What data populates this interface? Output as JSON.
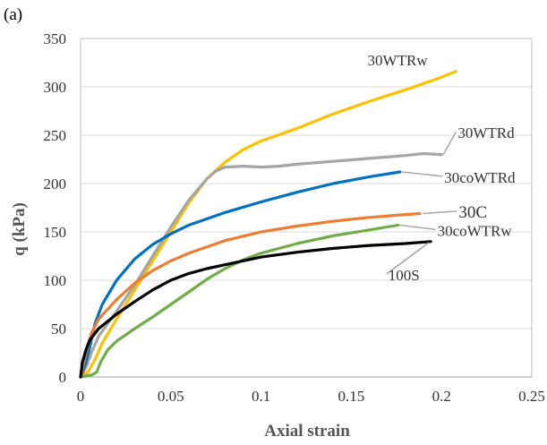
{
  "panel_label": "(a)",
  "chart_data": {
    "type": "line",
    "title": "",
    "xlabel": "Axial strain",
    "ylabel": "q (kPa)",
    "xlim": [
      0,
      0.25
    ],
    "ylim": [
      0,
      350
    ],
    "x_ticks": [
      "0",
      "0.05",
      "0.1",
      "0.15",
      "0.2",
      "0.25"
    ],
    "y_ticks": [
      "0",
      "50",
      "100",
      "150",
      "200",
      "250",
      "300",
      "350"
    ],
    "grid": "horizontal",
    "legend": "none (direct labels)",
    "series": [
      {
        "name": "30WTRw",
        "color": "#FFC000",
        "points": [
          [
            0,
            0
          ],
          [
            0.004,
            5
          ],
          [
            0.008,
            18
          ],
          [
            0.012,
            35
          ],
          [
            0.02,
            60
          ],
          [
            0.03,
            90
          ],
          [
            0.04,
            120
          ],
          [
            0.05,
            150
          ],
          [
            0.06,
            180
          ],
          [
            0.07,
            205
          ],
          [
            0.08,
            222
          ],
          [
            0.09,
            235
          ],
          [
            0.1,
            244
          ],
          [
            0.12,
            257
          ],
          [
            0.14,
            272
          ],
          [
            0.16,
            285
          ],
          [
            0.18,
            297
          ],
          [
            0.2,
            310
          ],
          [
            0.208,
            316
          ]
        ]
      },
      {
        "name": "30WTRd",
        "color": "#A5A5A5",
        "points": [
          [
            0,
            0
          ],
          [
            0.003,
            10
          ],
          [
            0.006,
            25
          ],
          [
            0.01,
            42
          ],
          [
            0.015,
            55
          ],
          [
            0.02,
            68
          ],
          [
            0.03,
            95
          ],
          [
            0.04,
            125
          ],
          [
            0.05,
            155
          ],
          [
            0.06,
            183
          ],
          [
            0.07,
            205
          ],
          [
            0.075,
            213
          ],
          [
            0.08,
            217
          ],
          [
            0.09,
            218
          ],
          [
            0.1,
            217
          ],
          [
            0.11,
            218
          ],
          [
            0.12,
            220
          ],
          [
            0.14,
            223
          ],
          [
            0.16,
            226
          ],
          [
            0.18,
            229
          ],
          [
            0.19,
            231
          ],
          [
            0.2,
            230
          ]
        ]
      },
      {
        "name": "30coWTRd",
        "color": "#0070C0",
        "points": [
          [
            0,
            0
          ],
          [
            0.003,
            15
          ],
          [
            0.005,
            30
          ],
          [
            0.008,
            55
          ],
          [
            0.012,
            75
          ],
          [
            0.02,
            100
          ],
          [
            0.03,
            122
          ],
          [
            0.04,
            137
          ],
          [
            0.05,
            148
          ],
          [
            0.06,
            157
          ],
          [
            0.08,
            170
          ],
          [
            0.1,
            181
          ],
          [
            0.12,
            191
          ],
          [
            0.14,
            200
          ],
          [
            0.16,
            207
          ],
          [
            0.177,
            212
          ]
        ]
      },
      {
        "name": "30C",
        "color": "#ED7D31",
        "points": [
          [
            0,
            0
          ],
          [
            0.003,
            25
          ],
          [
            0.006,
            45
          ],
          [
            0.01,
            60
          ],
          [
            0.02,
            80
          ],
          [
            0.03,
            97
          ],
          [
            0.04,
            110
          ],
          [
            0.05,
            120
          ],
          [
            0.06,
            128
          ],
          [
            0.08,
            141
          ],
          [
            0.1,
            150
          ],
          [
            0.12,
            156
          ],
          [
            0.14,
            161
          ],
          [
            0.16,
            165
          ],
          [
            0.18,
            168
          ],
          [
            0.188,
            169
          ]
        ]
      },
      {
        "name": "30coWTRw",
        "color": "#70AD47",
        "points": [
          [
            0,
            0
          ],
          [
            0.006,
            2
          ],
          [
            0.009,
            5
          ],
          [
            0.011,
            15
          ],
          [
            0.015,
            28
          ],
          [
            0.02,
            37
          ],
          [
            0.03,
            50
          ],
          [
            0.04,
            62
          ],
          [
            0.05,
            75
          ],
          [
            0.06,
            88
          ],
          [
            0.07,
            101
          ],
          [
            0.08,
            112
          ],
          [
            0.09,
            121
          ],
          [
            0.1,
            128
          ],
          [
            0.12,
            138
          ],
          [
            0.14,
            146
          ],
          [
            0.16,
            152
          ],
          [
            0.176,
            157
          ]
        ]
      },
      {
        "name": "100S",
        "color": "#000000",
        "points": [
          [
            0,
            0
          ],
          [
            0.001,
            15
          ],
          [
            0.003,
            28
          ],
          [
            0.005,
            38
          ],
          [
            0.01,
            50
          ],
          [
            0.02,
            65
          ],
          [
            0.03,
            78
          ],
          [
            0.04,
            90
          ],
          [
            0.05,
            100
          ],
          [
            0.06,
            107
          ],
          [
            0.07,
            112
          ],
          [
            0.08,
            116
          ],
          [
            0.1,
            124
          ],
          [
            0.12,
            129
          ],
          [
            0.14,
            133
          ],
          [
            0.16,
            136
          ],
          [
            0.18,
            138
          ],
          [
            0.194,
            140
          ]
        ]
      }
    ],
    "labels": [
      {
        "text": "30WTRw",
        "x": 0.159,
        "y": 322
      },
      {
        "text": "30WTRd",
        "x": 0.209,
        "y": 247,
        "leader_from": [
          0.201,
          230
        ],
        "leader_color": "#A5A5A5"
      },
      {
        "text": "30coWTRd",
        "x": 0.2015,
        "y": 201,
        "leader_from": [
          0.178,
          212
        ],
        "leader_color": "#A5A5A5"
      },
      {
        "text": "30C",
        "x": 0.2095,
        "y": 165,
        "leader_from": [
          0.19,
          169
        ],
        "leader_color": "#A5A5A5",
        "big": true
      },
      {
        "text": "30coWTRw",
        "x": 0.1977,
        "y": 146,
        "leader_from": [
          0.177,
          157
        ],
        "leader_color": "#A5A5A5"
      },
      {
        "text": "100S",
        "x": 0.1705,
        "y": 100,
        "leader_from": [
          0.193,
          139
        ],
        "leader_color": "#A5A5A5"
      }
    ]
  }
}
